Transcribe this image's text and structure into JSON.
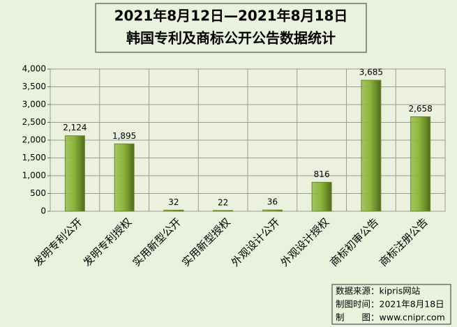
{
  "chart_data": {
    "type": "bar",
    "title_lines": [
      "2021年8月12日—2021年8月18日",
      "韩国专利及商标公开公告数据统计"
    ],
    "categories": [
      "发明专利公开",
      "发明专利授权",
      "实用新型公开",
      "实用新型授权",
      "外观设计公开",
      "外观设计授权",
      "商标初审公告",
      "商标注册公告"
    ],
    "values": [
      2124,
      1895,
      32,
      22,
      36,
      816,
      3685,
      2658
    ],
    "value_labels": [
      "2,124",
      "1,895",
      "32",
      "22",
      "36",
      "816",
      "3,685",
      "2,658"
    ],
    "color": "#8db63c",
    "ylim": [
      0,
      4000
    ],
    "yticks": [
      0,
      500,
      {
        "value": 1000,
        "label": "1,000"
      },
      {
        "value": 1500,
        "label": "1,500"
      },
      {
        "value": 2000,
        "label": "2,000"
      },
      {
        "value": 2500,
        "label": "2,500"
      },
      {
        "value": 3000,
        "label": "3,000"
      },
      {
        "value": 3500,
        "label": "3,500"
      },
      {
        "value": 4000,
        "label": "4,000"
      }
    ],
    "grid": true,
    "source_lines": [
      "数据来源：kipris网站",
      "制图时间：2021年8月18日",
      "制　　图：www.cnipr.com"
    ]
  }
}
